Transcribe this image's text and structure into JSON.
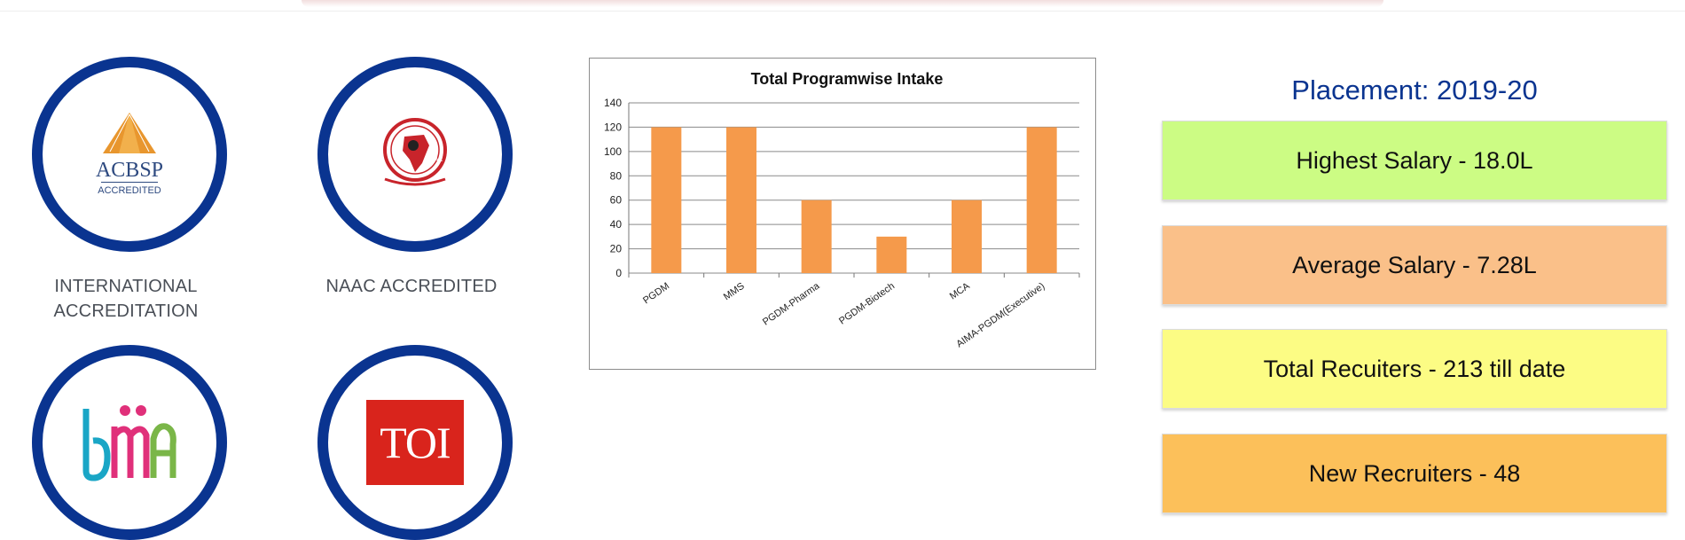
{
  "accreditations": [
    {
      "name": "ACBSP",
      "logo_text_main": "ACBSP",
      "logo_text_sub": "ACCREDITED",
      "label": "INTERNATIONAL ACCREDITATION"
    },
    {
      "name": "NAAC",
      "label": "NAAC ACCREDITED",
      "logo_text": "NAAC"
    },
    {
      "name": "BMA",
      "logo_text": "bma",
      "label": ""
    },
    {
      "name": "TOI",
      "logo_text": "TOI",
      "label": ""
    }
  ],
  "colors": {
    "ring": "#0a3490",
    "bar": "#f59a4b",
    "title": "#0a3490",
    "card_green": "#ccfc84",
    "card_orange": "#fac089",
    "card_yellow": "#fcfc84",
    "card_amber": "#fcc05a"
  },
  "chart_data": {
    "type": "bar",
    "title": "Total  Programwise Intake",
    "categories": [
      "PGDM",
      "MMS",
      "PGDM-Pharma",
      "PGDM-Biotech",
      "MCA",
      "AIMA-PGDM(Executive)"
    ],
    "values": [
      120,
      120,
      60,
      30,
      60,
      120
    ],
    "ylim": [
      0,
      140
    ],
    "yticks": [
      0,
      20,
      40,
      60,
      80,
      100,
      120,
      140
    ],
    "grid": true,
    "legend": "none"
  },
  "placement": {
    "title": "Placement: 2019-20",
    "cards": [
      {
        "label": "Highest Salary - 18.0L",
        "color": "#ccfc84"
      },
      {
        "label": "Average Salary - 7.28L",
        "color": "#fac089"
      },
      {
        "label": "Total Recuiters - 213 till date",
        "color": "#fcfc84"
      },
      {
        "label": "New Recruiters - 48",
        "color": "#fcc05a"
      }
    ]
  }
}
